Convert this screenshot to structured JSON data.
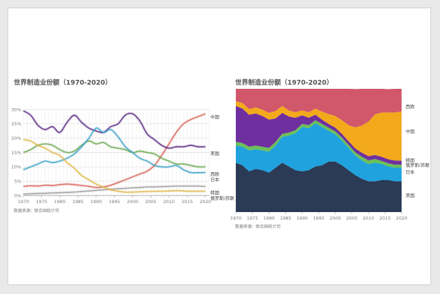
{
  "colors": {
    "us": "#5b2a86",
    "china": "#d9665d",
    "western_europe": "#6aa84f",
    "japan": "#3ca2c8",
    "korea": "#9e9e9e",
    "russia": "#e0b84a",
    "area_us": "#2b3a55",
    "area_japan": "#1fa2de",
    "area_russia": "#6bbf59",
    "area_korea": "#6f2f9f",
    "area_china": "#f2a91c",
    "area_europe": "#d0586a"
  },
  "chart_data": [
    {
      "type": "line",
      "title": "世界制造业份额（1970-2020）",
      "source": "数据来源：联合国统计司",
      "ylim": [
        0,
        30
      ],
      "yticks": [
        "0%",
        "5%",
        "10%",
        "15%",
        "20%",
        "25%",
        "30%"
      ],
      "xlim": [
        1970,
        2021
      ],
      "xticks": [
        "1970",
        "1975",
        "1980",
        "1985",
        "1990",
        "1995",
        "2000",
        "2005",
        "2010",
        "2015",
        "2020"
      ],
      "x": [
        1970,
        1972,
        1974,
        1976,
        1978,
        1980,
        1982,
        1984,
        1986,
        1988,
        1990,
        1992,
        1994,
        1996,
        1998,
        2000,
        2002,
        2004,
        2006,
        2008,
        2010,
        2012,
        2014,
        2016,
        2018,
        2020
      ],
      "series": [
        {
          "name": "中国",
          "key": "china",
          "values": [
            3.2,
            3.4,
            3.3,
            3.6,
            3.5,
            3.8,
            4.0,
            3.8,
            3.5,
            3.2,
            2.8,
            3.0,
            3.6,
            4.5,
            5.5,
            6.5,
            7.5,
            8.5,
            10.5,
            14,
            18,
            22,
            25,
            26.5,
            27.5,
            28.5
          ]
        },
        {
          "name": "美国",
          "key": "us",
          "values": [
            29.5,
            28,
            24.5,
            23,
            24,
            22,
            25.5,
            28,
            25.5,
            23.5,
            22.5,
            22,
            24,
            25,
            28,
            28.5,
            26,
            21.5,
            19.5,
            17.5,
            16.5,
            17,
            17,
            17.5,
            17,
            17
          ]
        },
        {
          "name": "西欧",
          "key": "western_europe",
          "values": [
            15,
            16,
            17.5,
            18,
            17.5,
            16,
            15,
            15.5,
            17.5,
            19,
            18,
            18.5,
            17,
            16.5,
            16,
            15,
            15.5,
            15,
            14.5,
            13,
            12,
            11,
            11,
            10.5,
            10,
            10
          ]
        },
        {
          "name": "日本",
          "key": "japan",
          "values": [
            9,
            10,
            11,
            12,
            11.5,
            12,
            13,
            14.5,
            17,
            20,
            23.5,
            22,
            23,
            20.5,
            17,
            15,
            13,
            12,
            10.5,
            10,
            10,
            10.5,
            9,
            8,
            8,
            8
          ]
        },
        {
          "name": "韩国",
          "key": "korea",
          "values": [
            0.5,
            0.6,
            0.7,
            0.8,
            0.9,
            1.0,
            1.1,
            1.2,
            1.4,
            1.6,
            1.8,
            2.0,
            2.2,
            2.4,
            2.5,
            2.7,
            2.8,
            3.0,
            3.0,
            3.1,
            3.2,
            3.3,
            3.3,
            3.3,
            3.3,
            3.2
          ]
        },
        {
          "name": "俄罗斯/苏联",
          "key": "russia",
          "values": [
            19.5,
            19,
            17.5,
            16.5,
            15,
            14,
            11.5,
            9.5,
            7,
            5.5,
            4,
            3,
            2,
            1.5,
            1.2,
            1.2,
            1.3,
            1.4,
            1.5,
            1.5,
            1.6,
            1.7,
            1.6,
            1.5,
            1.5,
            1.5
          ]
        }
      ]
    },
    {
      "type": "area",
      "title": "世界制造业份额（1970-2020）",
      "source": "数据来源：联合国统计司",
      "ylim": [
        0,
        100
      ],
      "xlim": [
        1970,
        2021
      ],
      "xticks": [
        "1970",
        "1975",
        "1980",
        "1985",
        "1990",
        "1995",
        "2000",
        "2005",
        "2010",
        "2015",
        "2020"
      ],
      "x": [
        1970,
        1972,
        1974,
        1976,
        1978,
        1980,
        1982,
        1984,
        1986,
        1988,
        1990,
        1992,
        1994,
        1996,
        1998,
        2000,
        2002,
        2004,
        2006,
        2008,
        2010,
        2012,
        2014,
        2016,
        2018,
        2020
      ],
      "series": [
        {
          "name": "美国",
          "key": "area_us",
          "values": [
            40,
            38,
            33,
            35,
            34,
            32,
            36,
            40,
            37,
            34,
            33,
            34,
            37,
            38,
            41,
            41,
            38,
            34,
            30,
            27,
            25,
            25,
            26,
            26,
            25,
            25
          ]
        },
        {
          "name": "日本",
          "key": "area_japan",
          "values": [
            14,
            15,
            17,
            16,
            16,
            17,
            18,
            21,
            25,
            30,
            36,
            34,
            35,
            31,
            25,
            22,
            20,
            18,
            16,
            15,
            14,
            15,
            13,
            11,
            11,
            11
          ]
        },
        {
          "name": "俄罗斯/苏联",
          "key": "area_russia",
          "values": [
            3,
            3,
            3,
            3,
            3,
            3,
            3,
            2.5,
            2.5,
            2.5,
            2.5,
            2.5,
            2.5,
            2.5,
            2.5,
            2.5,
            2.5,
            2.5,
            2.5,
            3,
            3,
            3,
            2.5,
            2.5,
            2.5,
            2.5
          ]
        },
        {
          "name": "韩国",
          "key": "area_korea",
          "values": [
            29,
            28,
            26,
            26,
            25,
            23,
            19,
            17,
            13,
            10,
            7,
            6,
            4.5,
            3.5,
            3,
            3,
            3,
            3,
            3.2,
            3.2,
            3.3,
            3.3,
            3.3,
            3.3,
            3.3,
            3.2
          ]
        },
        {
          "name": "中国",
          "key": "area_china",
          "values": [
            4,
            4.5,
            4.5,
            5,
            5,
            5.5,
            6,
            5.5,
            5,
            4.5,
            4,
            4.5,
            5,
            6.5,
            8,
            9.5,
            11,
            13,
            17,
            22,
            28,
            33,
            36,
            38,
            39,
            40
          ]
        },
        {
          "name": "西欧",
          "key": "area_europe",
          "values": [
            10,
            11.5,
            16.5,
            15,
            17,
            19.5,
            18,
            14,
            17.5,
            19,
            17.5,
            19,
            16,
            18.5,
            20.5,
            22,
            25.5,
            29.5,
            31.1,
            29.8,
            26.7,
            20.7,
            19.2,
            18.9,
            19.2,
            18.3
          ]
        }
      ]
    }
  ]
}
